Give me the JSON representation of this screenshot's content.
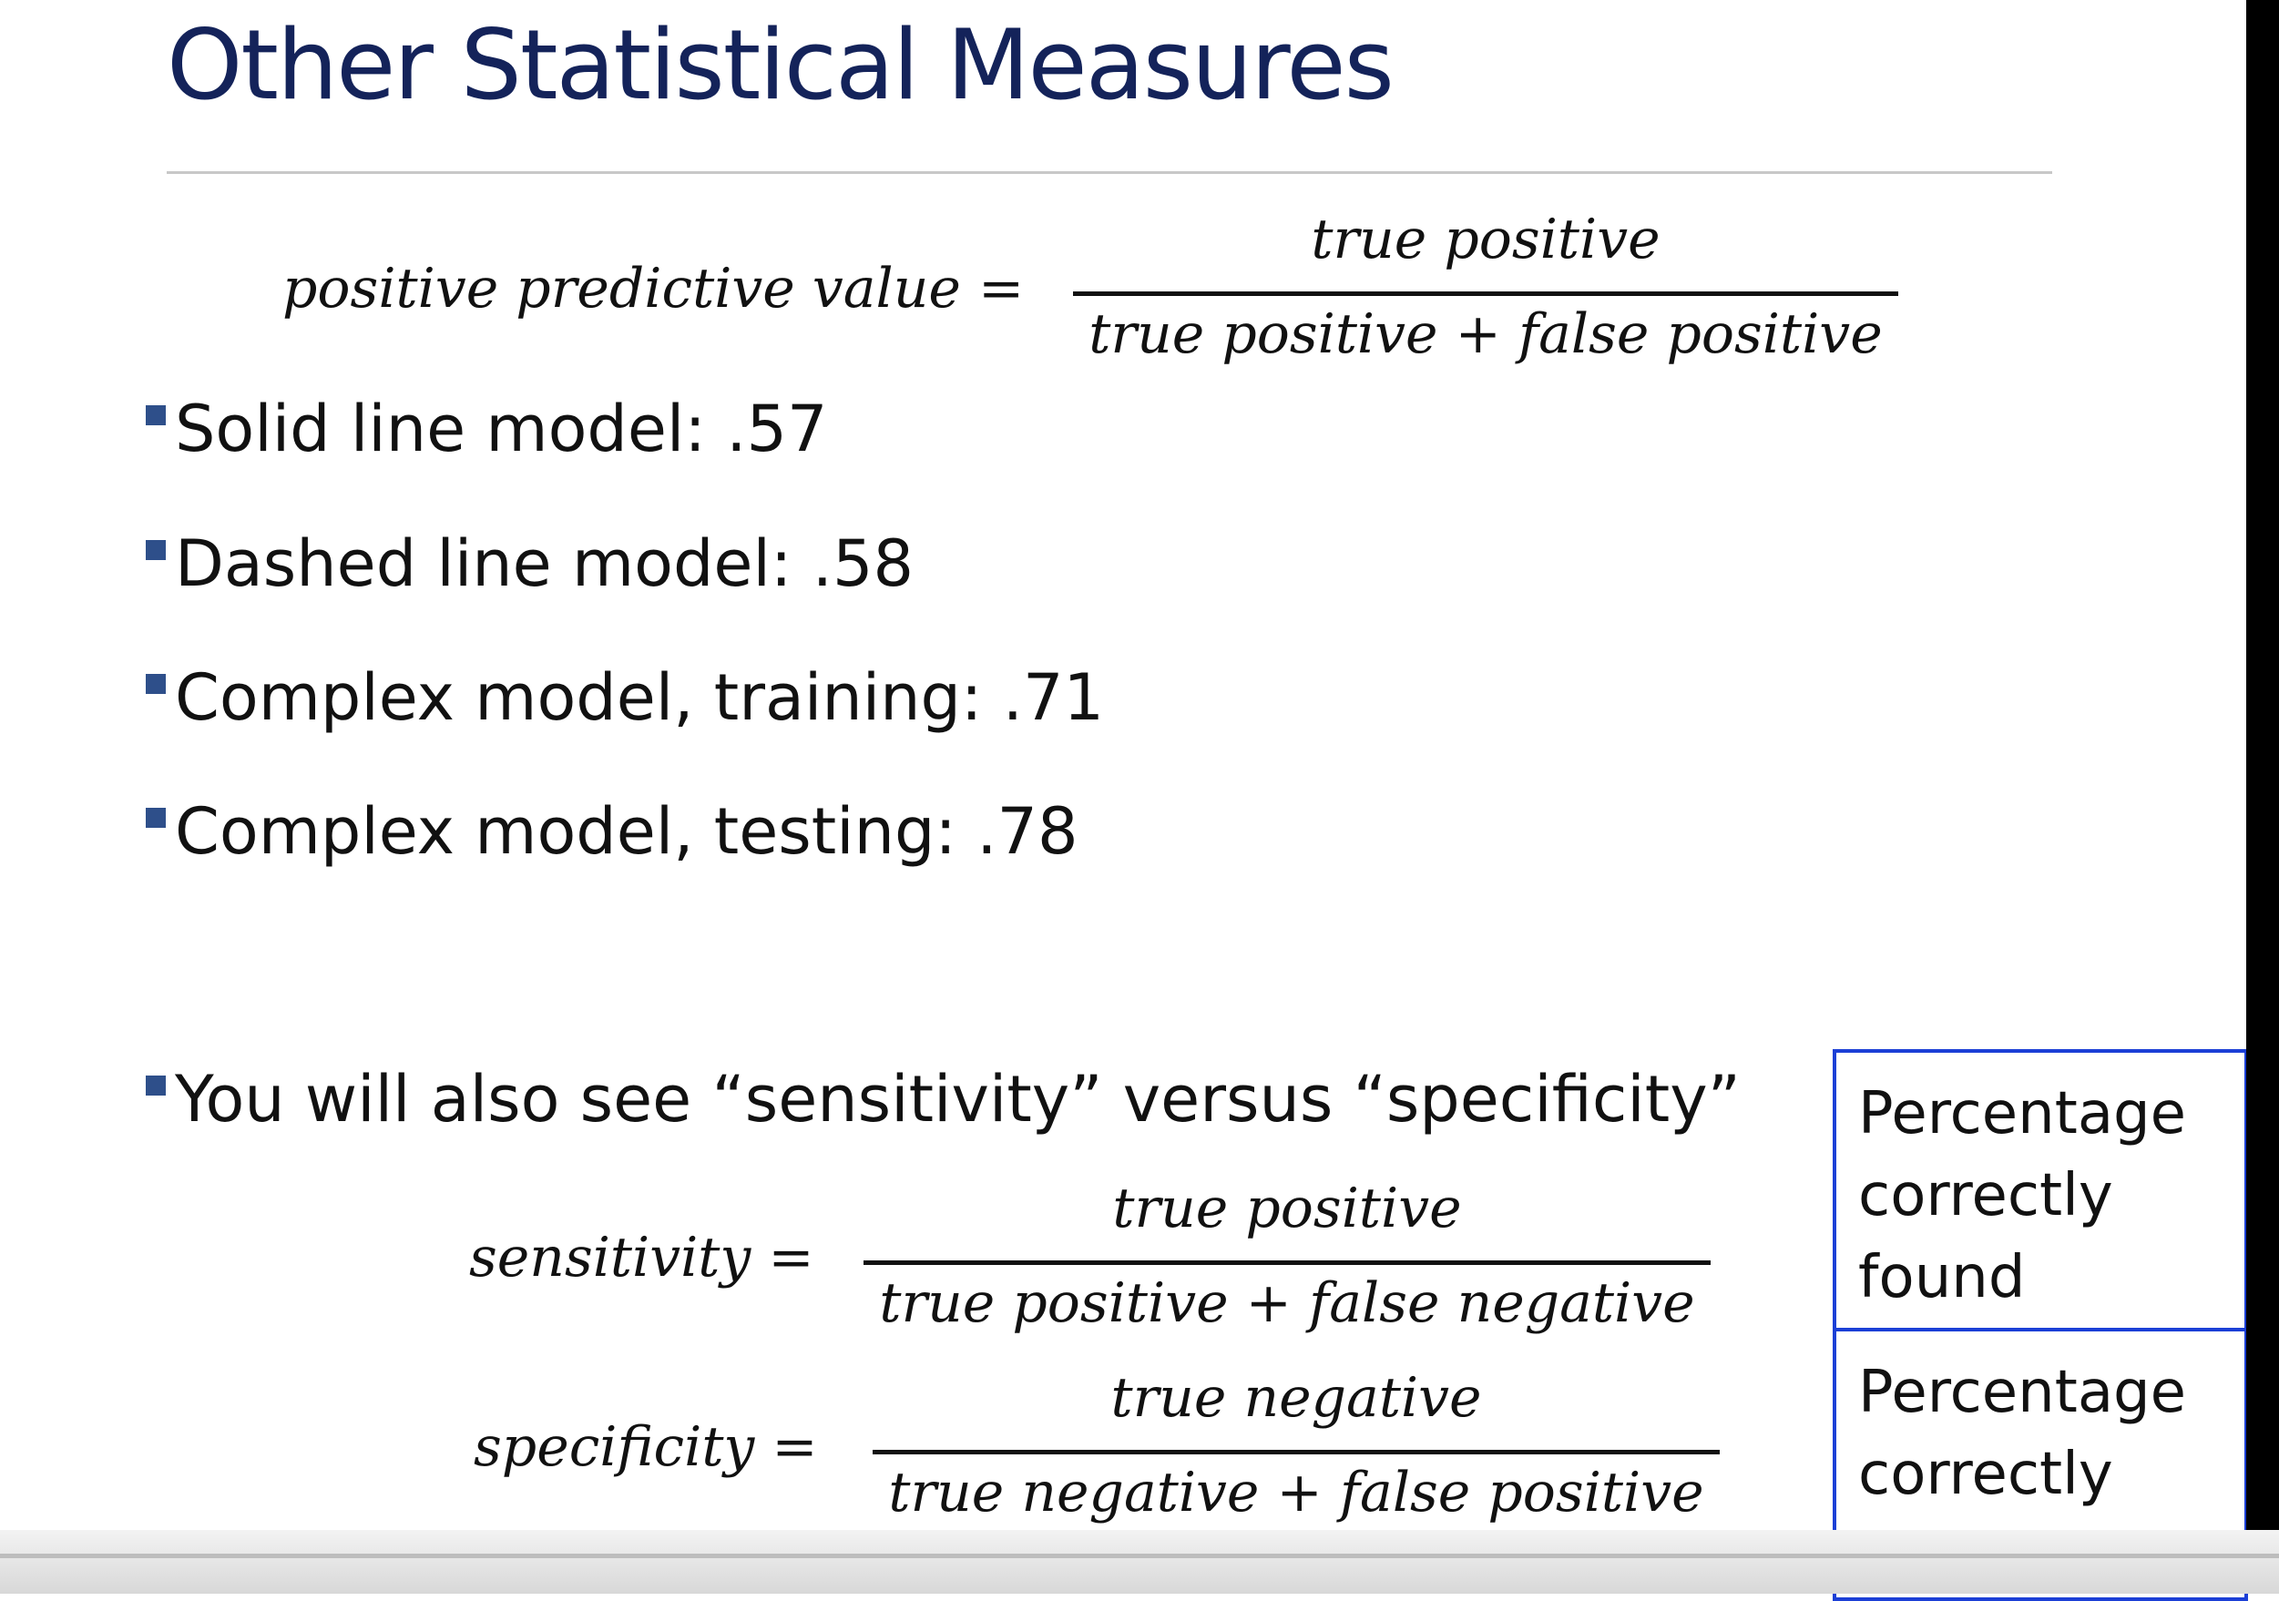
{
  "slide": {
    "title": "Other Statistical Measures",
    "ppv": {
      "lhs": "positive predictive value =",
      "numerator": "true positive",
      "denominator": "true positive + false positive"
    },
    "bullets": [
      "Solid line model: .57",
      "Dashed line model: .58",
      "Complex model, training: .71",
      "Complex model, testing: .78"
    ],
    "note_bullet": "You will also see “sensitivity” versus “specificity”",
    "sensitivity": {
      "lhs": "sensitivity =",
      "numerator": "true positive",
      "denominator": "true positive + false negative"
    },
    "specificity": {
      "lhs": "specificity =",
      "numerator": "true negative",
      "denominator": "true negative + false positive"
    },
    "callouts": [
      "Percentage correctly found",
      "Percentage correctly rejected"
    ],
    "colors": {
      "title": "#14235a",
      "bullet_marker": "#2e4f8a",
      "callout_border": "#1b3fd6"
    }
  }
}
